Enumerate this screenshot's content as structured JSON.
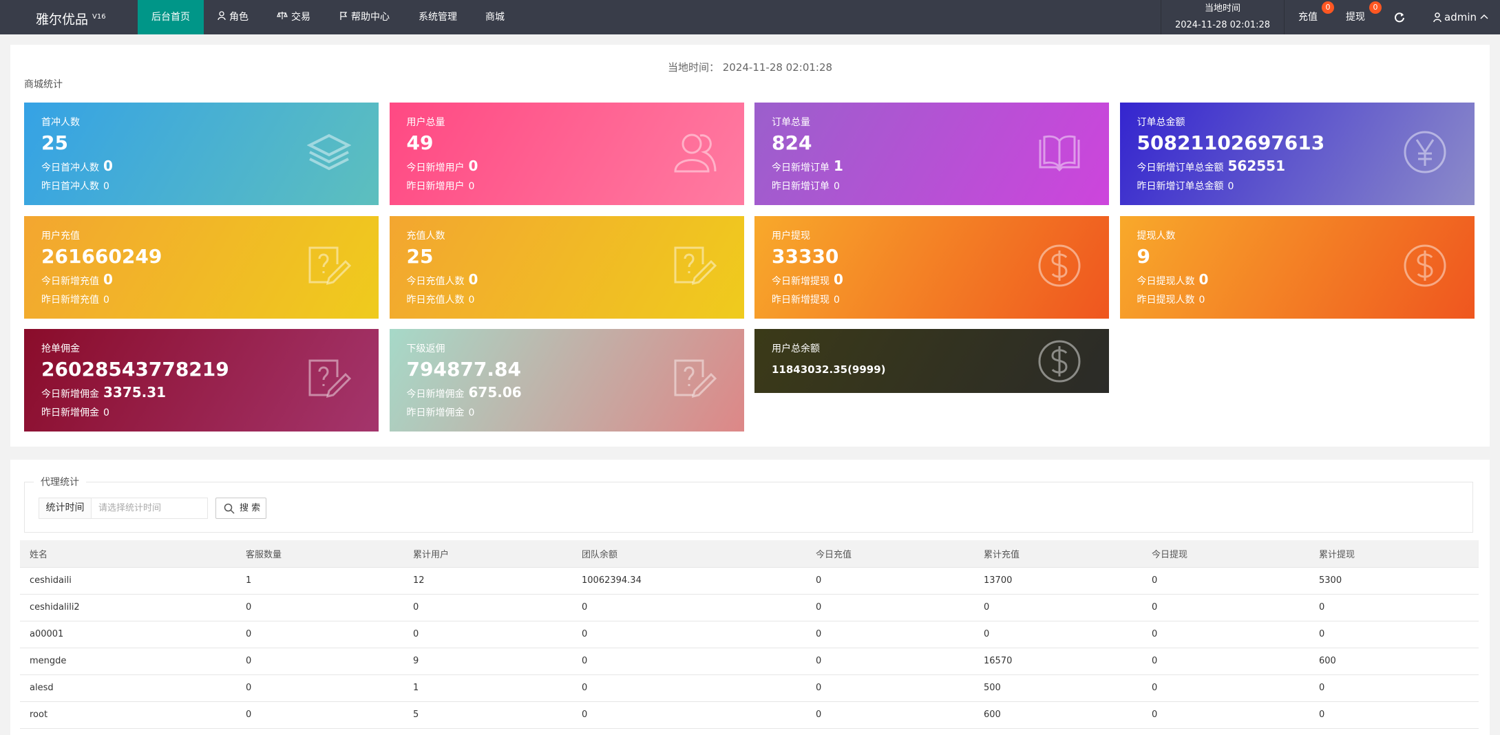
{
  "nav": {
    "brand": "雅尔优品",
    "version": "V16",
    "menu": [
      "后台首页",
      "角色",
      "交易",
      "帮助中心",
      "系统管理",
      "商城"
    ],
    "time_label": "当地时间",
    "time": "2024-11-28 02:01:28",
    "recharge": "充值",
    "recharge_badge": "0",
    "withdraw": "提现",
    "withdraw_badge": "0",
    "user": "admin"
  },
  "stats": {
    "time_label": "当地时间：",
    "time": "2024-11-28 02:01:28",
    "section": "商城统计",
    "cards": [
      {
        "title": "首冲人数",
        "value": "25",
        "today_label": "今日首冲人数",
        "today": "0",
        "yesterday_label": "昨日首冲人数",
        "yesterday": "0"
      },
      {
        "title": "用户总量",
        "value": "49",
        "today_label": "今日新增用户",
        "today": "0",
        "yesterday_label": "昨日新增用户",
        "yesterday": "0"
      },
      {
        "title": "订单总量",
        "value": "824",
        "today_label": "今日新增订单",
        "today": "1",
        "yesterday_label": "昨日新增订单",
        "yesterday": "0"
      },
      {
        "title": "订单总金额",
        "value": "50821102697613",
        "today_label": "今日新增订单总金额",
        "today": "562551",
        "yesterday_label": "昨日新增订单总金额",
        "yesterday": "0"
      },
      {
        "title": "用户充值",
        "value": "261660249",
        "today_label": "今日新增充值",
        "today": "0",
        "yesterday_label": "昨日新增充值",
        "yesterday": "0"
      },
      {
        "title": "充值人数",
        "value": "25",
        "today_label": "今日充值人数",
        "today": "0",
        "yesterday_label": "昨日充值人数",
        "yesterday": "0"
      },
      {
        "title": "用户提现",
        "value": "33330",
        "today_label": "今日新增提现",
        "today": "0",
        "yesterday_label": "昨日新增提现",
        "yesterday": "0"
      },
      {
        "title": "提现人数",
        "value": "9",
        "today_label": "今日提现人数",
        "today": "0",
        "yesterday_label": "昨日提现人数",
        "yesterday": "0"
      },
      {
        "title": "抢单佣金",
        "value": "26028543778219",
        "today_label": "今日新增佣金",
        "today": "3375.31",
        "yesterday_label": "昨日新增佣金",
        "yesterday": "0"
      },
      {
        "title": "下级返佣",
        "value": "794877.84",
        "today_label": "今日新增佣金",
        "today": "675.06",
        "yesterday_label": "昨日新增佣金",
        "yesterday": "0"
      },
      {
        "title": "用户总余额",
        "value": "11843032.35(9999)"
      }
    ]
  },
  "agent": {
    "legend": "代理统计",
    "filter_label": "统计时间",
    "placeholder": "请选择统计时间",
    "button": "搜 索",
    "table": {
      "columns": [
        "姓名",
        "客服数量",
        "累计用户",
        "团队余额",
        "今日充值",
        "累计充值",
        "今日提现",
        "累计提现"
      ],
      "rows": [
        [
          "ceshidaili",
          "1",
          "12",
          "10062394.34",
          "0",
          "13700",
          "0",
          "5300"
        ],
        [
          "ceshidalili2",
          "0",
          "0",
          "0",
          "0",
          "0",
          "0",
          "0"
        ],
        [
          "a00001",
          "0",
          "0",
          "0",
          "0",
          "0",
          "0",
          "0"
        ],
        [
          "mengde",
          "0",
          "9",
          "0",
          "0",
          "16570",
          "0",
          "600"
        ],
        [
          "alesd",
          "0",
          "1",
          "0",
          "0",
          "500",
          "0",
          "0"
        ],
        [
          "root",
          "0",
          "5",
          "0",
          "0",
          "600",
          "0",
          "0"
        ]
      ]
    }
  }
}
